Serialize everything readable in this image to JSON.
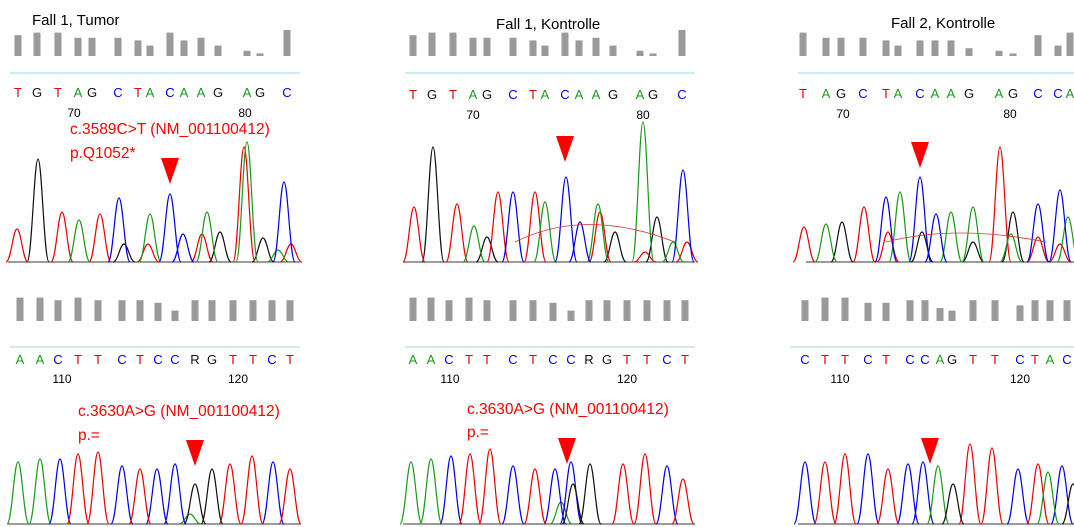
{
  "colors": {
    "A": "#1a9a1a",
    "C": "#0000ee",
    "G": "#111111",
    "T": "#ee0000",
    "R": "#111111",
    "baseline": "#9fd8e6",
    "quality_bar": "#9a9a9a",
    "marker": "#ff0000"
  },
  "panels": [
    {
      "id": "p1",
      "title": "Fall 1, Tumor",
      "sequence": [
        "T",
        "G",
        "T",
        "A",
        "G",
        "C",
        "T",
        "A",
        "C",
        "A",
        "A",
        "G",
        "A",
        "G",
        "C"
      ],
      "bases": [
        [
          "T",
          18
        ],
        [
          "G",
          37
        ],
        [
          "T",
          58
        ],
        [
          "A",
          78
        ],
        [
          "G",
          92
        ],
        [
          "C",
          118
        ],
        [
          "T",
          138
        ],
        [
          "A",
          150
        ],
        [
          "C",
          170
        ],
        [
          "A",
          184
        ],
        [
          "A",
          201
        ],
        [
          "G",
          218
        ],
        [
          "A",
          247
        ],
        [
          "G",
          260
        ],
        [
          "C",
          287
        ]
      ],
      "quality": [
        8,
        9,
        9,
        7,
        7,
        7,
        6,
        4,
        9,
        6,
        7,
        4,
        2,
        1,
        10
      ],
      "positions": [
        [
          "70",
          74
        ],
        [
          "80",
          245
        ]
      ],
      "annotation": [
        "c.3589C>T (NM_001100412)",
        "p.Q1052*"
      ],
      "marker_x": 170,
      "peaks": [
        [
          "G",
          [
            [
              38,
              103
            ],
            [
              124,
              18
            ],
            [
              220,
              30
            ],
            [
              263,
              24
            ]
          ]
        ],
        [
          "T",
          [
            [
              17,
              33
            ],
            [
              62,
              50
            ],
            [
              100,
              48
            ],
            [
              148,
              18
            ],
            [
              202,
              28
            ],
            [
              244,
              115
            ],
            [
              291,
              18
            ]
          ]
        ],
        [
          "A",
          [
            [
              79,
              42
            ],
            [
              150,
              48
            ],
            [
              207,
              50
            ],
            [
              247,
              120
            ],
            [
              278,
              12
            ]
          ]
        ],
        [
          "C",
          [
            [
              119,
              64
            ],
            [
              170,
              68
            ],
            [
              183,
              28
            ],
            [
              284,
              80
            ]
          ]
        ]
      ],
      "mixed": []
    },
    {
      "id": "p2",
      "title": "Fall 1, Kontrolle",
      "sequence": [
        "T",
        "G",
        "T",
        "A",
        "G",
        "C",
        "T",
        "A",
        "C",
        "A",
        "A",
        "G",
        "A",
        "G",
        "C"
      ],
      "bases": [
        [
          "T",
          18
        ],
        [
          "G",
          37
        ],
        [
          "T",
          58
        ],
        [
          "A",
          78
        ],
        [
          "G",
          92
        ],
        [
          "C",
          118
        ],
        [
          "T",
          138
        ],
        [
          "A",
          150
        ],
        [
          "C",
          170
        ],
        [
          "A",
          184
        ],
        [
          "A",
          201
        ],
        [
          "G",
          218
        ],
        [
          "A",
          245
        ],
        [
          "G",
          258
        ],
        [
          "C",
          287
        ]
      ],
      "quality": [
        8,
        9,
        9,
        7,
        7,
        7,
        6,
        4,
        9,
        6,
        7,
        4,
        2,
        1,
        10
      ],
      "positions": [
        [
          "70",
          78
        ],
        [
          "80",
          248
        ]
      ],
      "annotation": [],
      "marker_x": 170,
      "peaks": [
        [
          "G",
          [
            [
              38,
              115
            ],
            [
              92,
              25
            ],
            [
              220,
              30
            ],
            [
              262,
              45
            ]
          ]
        ],
        [
          "T",
          [
            [
              19,
              55
            ],
            [
              62,
              58
            ],
            [
              103,
              70
            ],
            [
              140,
              70
            ],
            [
              205,
              50
            ],
            [
              250,
              10
            ],
            [
              292,
              20
            ]
          ]
        ],
        [
          "A",
          [
            [
              79,
              36
            ],
            [
              150,
              60
            ],
            [
              203,
              58
            ],
            [
              248,
              140
            ],
            [
              278,
              20
            ]
          ]
        ],
        [
          "C",
          [
            [
              118,
              70
            ],
            [
              171,
              85
            ],
            [
              185,
              40
            ],
            [
              288,
              92
            ]
          ]
        ]
      ],
      "mixed": [
        [
          190,
          35,
          20
        ]
      ]
    },
    {
      "id": "p3",
      "title": "Fall 2, Kontrolle",
      "sequence": [
        "T",
        "A",
        "G",
        "C",
        "T",
        "A",
        "C",
        "A",
        "A",
        "G",
        "A",
        "G",
        "C",
        "C",
        "A"
      ],
      "bases": [
        [
          "T",
          5
        ],
        [
          "A",
          28
        ],
        [
          "G",
          43
        ],
        [
          "C",
          65
        ],
        [
          "T",
          88
        ],
        [
          "A",
          100
        ],
        [
          "C",
          122
        ],
        [
          "A",
          137
        ],
        [
          "A",
          153
        ],
        [
          "G",
          171
        ],
        [
          "A",
          201
        ],
        [
          "G",
          215
        ],
        [
          "C",
          240
        ],
        [
          "C",
          260
        ],
        [
          "A",
          272
        ]
      ],
      "quality": [
        9,
        7,
        7,
        7,
        6,
        4,
        6,
        6,
        6,
        3,
        2,
        1,
        8,
        4,
        9
      ],
      "positions": [
        [
          "70",
          45
        ],
        [
          "80",
          212
        ]
      ],
      "annotation": [],
      "marker_x": 122,
      "peaks": [
        [
          "G",
          [
            [
              44,
              40
            ],
            [
              124,
              30
            ],
            [
              175,
              20
            ],
            [
              215,
              50
            ]
          ]
        ],
        [
          "T",
          [
            [
              6,
              35
            ],
            [
              66,
              55
            ],
            [
              90,
              30
            ],
            [
              202,
              115
            ],
            [
              240,
              25
            ],
            [
              262,
              18
            ]
          ]
        ],
        [
          "A",
          [
            [
              28,
              38
            ],
            [
              102,
              70
            ],
            [
              153,
              50
            ],
            [
              175,
              55
            ],
            [
              213,
              28
            ],
            [
              270,
              45
            ]
          ]
        ],
        [
          "C",
          [
            [
              88,
              65
            ],
            [
              122,
              85
            ],
            [
              138,
              48
            ],
            [
              240,
              58
            ],
            [
              262,
              72
            ]
          ]
        ]
      ],
      "mixed": [
        [
          158,
          18,
          20
        ]
      ]
    },
    {
      "id": "p4",
      "title": "",
      "sequence": [
        "A",
        "A",
        "C",
        "T",
        "T",
        "C",
        "T",
        "C",
        "C",
        "R",
        "G",
        "T",
        "T",
        "C",
        "T"
      ],
      "bases": [
        [
          "A",
          20
        ],
        [
          "A",
          40
        ],
        [
          "C",
          58
        ],
        [
          "T",
          78
        ],
        [
          "T",
          98
        ],
        [
          "C",
          122
        ],
        [
          "T",
          140
        ],
        [
          "C",
          158
        ],
        [
          "C",
          175
        ],
        [
          "R",
          195
        ],
        [
          "G",
          212
        ],
        [
          "T",
          233
        ],
        [
          "T",
          253
        ],
        [
          "C",
          272
        ],
        [
          "T",
          290
        ]
      ],
      "quality": [
        9,
        9,
        8,
        9,
        8,
        8,
        8,
        7,
        4,
        8,
        8,
        8,
        8,
        8,
        8
      ],
      "positions": [
        [
          "110",
          62
        ],
        [
          "120",
          238
        ]
      ],
      "annotation": [
        "c.3630A>G (NM_001100412)",
        "p.="
      ],
      "marker_x": 195,
      "peaks": [
        [
          "A",
          [
            [
              18,
              62
            ],
            [
              40,
              65
            ],
            [
              190,
              10
            ]
          ]
        ],
        [
          "C",
          [
            [
              60,
              65
            ],
            [
              122,
              58
            ],
            [
              157,
              55
            ],
            [
              175,
              60
            ],
            [
              273,
              62
            ]
          ]
        ],
        [
          "T",
          [
            [
              78,
              70
            ],
            [
              98,
              72
            ],
            [
              140,
              55
            ],
            [
              230,
              60
            ],
            [
              252,
              68
            ],
            [
              290,
              55
            ]
          ]
        ],
        [
          "G",
          [
            [
              195,
              40
            ],
            [
              212,
              55
            ]
          ]
        ]
      ],
      "mixed": []
    },
    {
      "id": "p5",
      "title": "",
      "sequence": [
        "A",
        "A",
        "C",
        "T",
        "T",
        "C",
        "T",
        "C",
        "C",
        "R",
        "G",
        "T",
        "T",
        "C",
        "T"
      ],
      "bases": [
        [
          "A",
          18
        ],
        [
          "A",
          36
        ],
        [
          "C",
          54
        ],
        [
          "T",
          74
        ],
        [
          "T",
          92
        ],
        [
          "C",
          118
        ],
        [
          "T",
          138
        ],
        [
          "C",
          158
        ],
        [
          "C",
          176
        ],
        [
          "R",
          194
        ],
        [
          "G",
          212
        ],
        [
          "T",
          232
        ],
        [
          "T",
          252
        ],
        [
          "C",
          272
        ],
        [
          "T",
          290
        ]
      ],
      "quality": [
        9,
        9,
        8,
        9,
        8,
        8,
        8,
        7,
        4,
        8,
        8,
        8,
        8,
        8,
        8
      ],
      "positions": [
        [
          "110",
          55
        ],
        [
          "120",
          232
        ]
      ],
      "annotation": [
        "c.3630A>G (NM_001100412)",
        "p.="
      ],
      "marker_x": 172,
      "peaks": [
        [
          "A",
          [
            [
              16,
              62
            ],
            [
              36,
              65
            ],
            [
              166,
              22
            ]
          ]
        ],
        [
          "C",
          [
            [
              56,
              68
            ],
            [
              118,
              58
            ],
            [
              160,
              55
            ],
            [
              176,
              62
            ],
            [
              272,
              58
            ]
          ]
        ],
        [
          "T",
          [
            [
              75,
              70
            ],
            [
              95,
              75
            ],
            [
              140,
              55
            ],
            [
              228,
              60
            ],
            [
              250,
              70
            ],
            [
              288,
              45
            ]
          ]
        ],
        [
          "G",
          [
            [
              178,
              40
            ],
            [
              195,
              60
            ]
          ]
        ]
      ],
      "mixed": []
    },
    {
      "id": "p6",
      "title": "",
      "sequence": [
        "C",
        "T",
        "T",
        "C",
        "T",
        "C",
        "C",
        "A",
        "G",
        "T",
        "T",
        "C",
        "T",
        "A",
        "C"
      ],
      "bases": [
        [
          "C",
          15
        ],
        [
          "T",
          35
        ],
        [
          "T",
          55
        ],
        [
          "C",
          78
        ],
        [
          "T",
          96
        ],
        [
          "C",
          120
        ],
        [
          "C",
          135
        ],
        [
          "A",
          150
        ],
        [
          "G",
          162
        ],
        [
          "T",
          183
        ],
        [
          "T",
          205
        ],
        [
          "C",
          230
        ],
        [
          "T",
          245
        ],
        [
          "A",
          260
        ],
        [
          "C",
          277
        ]
      ],
      "quality": [
        8,
        9,
        9,
        7,
        7,
        8,
        8,
        5,
        4,
        8,
        8,
        6,
        8,
        8,
        8
      ],
      "positions": [
        [
          "110",
          50
        ],
        [
          "120",
          230
        ]
      ],
      "annotation": [],
      "marker_x": 140,
      "peaks": [
        [
          "C",
          [
            [
              15,
              62
            ],
            [
              78,
              70
            ],
            [
              118,
              60
            ],
            [
              133,
              62
            ],
            [
              228,
              55
            ],
            [
              272,
              58
            ]
          ]
        ],
        [
          "T",
          [
            [
              35,
              62
            ],
            [
              55,
              70
            ],
            [
              98,
              55
            ],
            [
              180,
              80
            ],
            [
              202,
              76
            ],
            [
              248,
              60
            ]
          ]
        ],
        [
          "A",
          [
            [
              148,
              58
            ],
            [
              258,
              52
            ]
          ]
        ],
        [
          "G",
          [
            [
              163,
              40
            ],
            [
              283,
              40
            ]
          ]
        ]
      ],
      "mixed": []
    }
  ]
}
